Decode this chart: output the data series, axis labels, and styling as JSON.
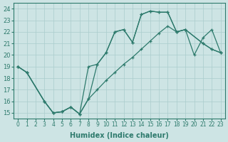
{
  "xlabel": "Humidex (Indice chaleur)",
  "xlim": [
    -0.5,
    23.5
  ],
  "ylim": [
    14.5,
    24.5
  ],
  "xticks": [
    0,
    1,
    2,
    3,
    4,
    5,
    6,
    7,
    8,
    9,
    10,
    11,
    12,
    13,
    14,
    15,
    16,
    17,
    18,
    19,
    20,
    21,
    22,
    23
  ],
  "yticks": [
    15,
    16,
    17,
    18,
    19,
    20,
    21,
    22,
    23,
    24
  ],
  "bg_color": "#cde4e4",
  "line_color": "#2d7a6c",
  "grid_color": "#aacccc",
  "line_a": {
    "x": [
      0,
      1,
      3,
      4,
      5,
      6,
      7,
      8,
      9,
      10,
      11,
      12,
      13,
      14,
      15,
      16,
      17,
      18,
      19,
      21,
      22,
      23
    ],
    "y": [
      19.0,
      18.5,
      16.0,
      15.0,
      15.1,
      15.5,
      14.9,
      19.0,
      19.2,
      20.2,
      22.0,
      22.2,
      21.1,
      23.5,
      23.8,
      23.7,
      23.7,
      22.0,
      22.2,
      21.0,
      20.5,
      20.2
    ]
  },
  "line_b": {
    "x": [
      0,
      1,
      3,
      4,
      5,
      6,
      7,
      8,
      9,
      10,
      11,
      12,
      13,
      14,
      15,
      16,
      17,
      18,
      19,
      21,
      22,
      23
    ],
    "y": [
      19.0,
      18.5,
      16.0,
      15.0,
      15.1,
      15.5,
      14.9,
      16.2,
      19.2,
      20.2,
      22.0,
      22.2,
      21.1,
      23.5,
      23.8,
      23.7,
      23.7,
      22.0,
      22.2,
      21.0,
      20.5,
      20.2
    ]
  },
  "line_c": {
    "x": [
      0,
      1,
      3,
      4,
      5,
      6,
      7,
      8,
      9,
      10,
      11,
      12,
      13,
      14,
      15,
      16,
      17,
      18,
      19,
      20,
      21,
      22,
      23
    ],
    "y": [
      19.0,
      18.5,
      16.0,
      15.0,
      15.1,
      15.5,
      14.9,
      16.2,
      17.0,
      17.8,
      18.5,
      19.2,
      19.8,
      20.5,
      21.2,
      21.9,
      22.5,
      22.0,
      22.2,
      20.0,
      21.5,
      22.2,
      20.2
    ]
  }
}
